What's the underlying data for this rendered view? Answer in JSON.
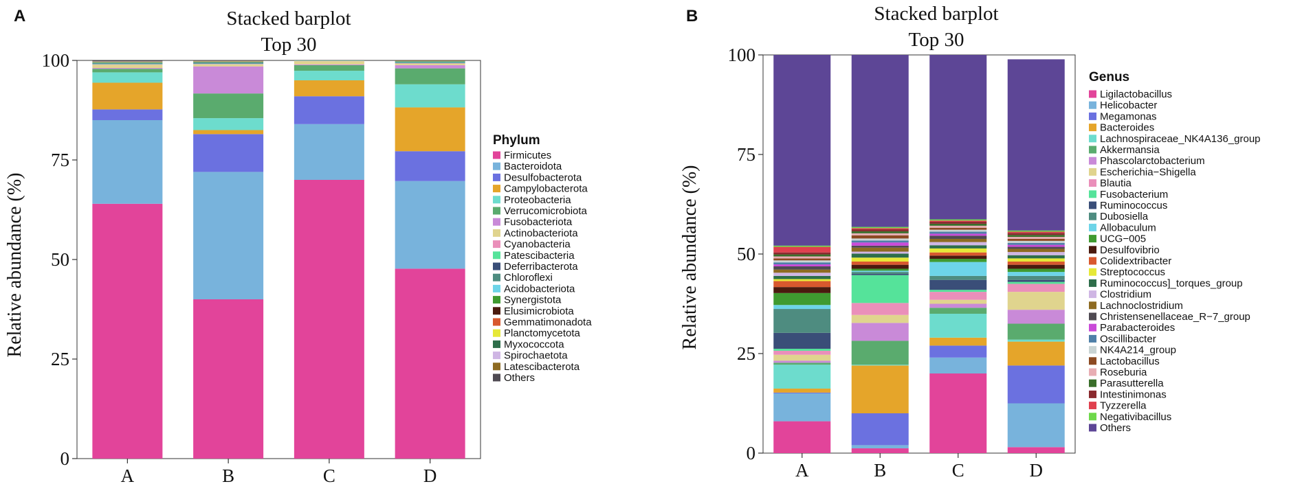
{
  "chart_data": [
    {
      "panel": "A",
      "type": "bar",
      "stacked": true,
      "title": "Stacked barplot",
      "subtitle": "Top 30",
      "ylabel": "Relative abundance (%)",
      "xlabel": "",
      "ylim": [
        0,
        100
      ],
      "yticks": [
        0,
        25,
        50,
        75,
        100
      ],
      "categories": [
        "A",
        "B",
        "C",
        "D"
      ],
      "legend_title": "Phylum",
      "legend_position": "right",
      "series": [
        {
          "name": "Firmicutes",
          "color": "#e2449a",
          "values": [
            64.0,
            40.0,
            70.0,
            47.7
          ]
        },
        {
          "name": "Bacteroidota",
          "color": "#78b3dc",
          "values": [
            21.0,
            32.0,
            14.0,
            22.0
          ]
        },
        {
          "name": "Desulfobacterota",
          "color": "#6b71e0",
          "values": [
            2.7,
            9.5,
            7.0,
            7.5
          ]
        },
        {
          "name": "Campylobacterota",
          "color": "#e5a52a",
          "values": [
            6.7,
            1.0,
            4.0,
            11.0
          ]
        },
        {
          "name": "Proteobacteria",
          "color": "#6ddccd",
          "values": [
            2.6,
            3.0,
            2.4,
            5.8
          ]
        },
        {
          "name": "Verrucomicrobiota",
          "color": "#5aab6e",
          "values": [
            0.9,
            6.2,
            1.4,
            4.0
          ]
        },
        {
          "name": "Fusobacteriota",
          "color": "#c98ad8",
          "values": [
            0.2,
            6.8,
            0.2,
            0.8
          ]
        },
        {
          "name": "Actinobacteriota",
          "color": "#e0d48e",
          "values": [
            0.8,
            0.5,
            0.8,
            0.4
          ]
        },
        {
          "name": "Cyanobacteria",
          "color": "#ea8fba",
          "values": [
            0.1,
            0.1,
            0.1,
            0.1
          ]
        },
        {
          "name": "Patescibacteria",
          "color": "#55e39a",
          "values": [
            0.1,
            0.1,
            0.1,
            0.1
          ]
        },
        {
          "name": "Deferribacterota",
          "color": "#3a4e78",
          "values": [
            0.1,
            0.1,
            0.1,
            0.1
          ]
        },
        {
          "name": "Chloroflexi",
          "color": "#4e8c80",
          "values": [
            0.1,
            0.1,
            0.1,
            0.1
          ]
        },
        {
          "name": "Acidobacteriota",
          "color": "#6dd4e8",
          "values": [
            0.1,
            0.1,
            0.1,
            0.1
          ]
        },
        {
          "name": "Synergistota",
          "color": "#3f9a30",
          "values": [
            0.1,
            0.1,
            0.1,
            0.1
          ]
        },
        {
          "name": "Elusimicrobiota",
          "color": "#4a1a0e",
          "values": [
            0.05,
            0.05,
            0.05,
            0.05
          ]
        },
        {
          "name": "Gemmatimonadota",
          "color": "#d8582e",
          "values": [
            0.05,
            0.05,
            0.05,
            0.05
          ]
        },
        {
          "name": "Planctomycetota",
          "color": "#e6e838",
          "values": [
            0.05,
            0.05,
            0.05,
            0.05
          ]
        },
        {
          "name": "Myxococcota",
          "color": "#2e6e4a",
          "values": [
            0.05,
            0.05,
            0.05,
            0.05
          ]
        },
        {
          "name": "Spirochaetota",
          "color": "#cfb6e4",
          "values": [
            0.05,
            0.05,
            0.05,
            0.05
          ]
        },
        {
          "name": "Latescibacterota",
          "color": "#8e6b22",
          "values": [
            0.05,
            0.05,
            0.05,
            0.05
          ]
        },
        {
          "name": "Others",
          "color": "#4f4a52",
          "values": [
            0.2,
            0.35,
            0.3,
            0.3
          ]
        }
      ]
    },
    {
      "panel": "B",
      "type": "bar",
      "stacked": true,
      "title": "Stacked barplot",
      "subtitle": "Top 30",
      "ylabel": "Relative abundance (%)",
      "xlabel": "",
      "ylim": [
        0,
        100
      ],
      "yticks": [
        0,
        25,
        50,
        75,
        100
      ],
      "categories": [
        "A",
        "B",
        "C",
        "D"
      ],
      "legend_title": "Genus",
      "legend_position": "right",
      "series": [
        {
          "name": "Ligilactobacillus",
          "color": "#e2449a",
          "values": [
            8.0,
            1.2,
            20.0,
            1.5
          ]
        },
        {
          "name": "Helicobacter",
          "color": "#78b3dc",
          "values": [
            7.0,
            0.8,
            4.0,
            11.0
          ]
        },
        {
          "name": "Megamonas",
          "color": "#6b71e0",
          "values": [
            0.2,
            8.0,
            3.0,
            9.5
          ]
        },
        {
          "name": "Bacteroides",
          "color": "#e5a52a",
          "values": [
            1.0,
            12.0,
            2.0,
            6.0
          ]
        },
        {
          "name": "Lachnospiraceae_NK4A136_group",
          "color": "#6ddccd",
          "values": [
            6.0,
            0.2,
            6.0,
            0.5
          ]
        },
        {
          "name": "Akkermansia",
          "color": "#5aab6e",
          "values": [
            0.5,
            6.0,
            1.5,
            4.0
          ]
        },
        {
          "name": "Phascolarctobacterium",
          "color": "#c98ad8",
          "values": [
            0.5,
            4.5,
            1.0,
            3.5
          ]
        },
        {
          "name": "Escherichia−Shigella",
          "color": "#e0d48e",
          "values": [
            1.5,
            2.0,
            1.0,
            4.5
          ]
        },
        {
          "name": "Blautia",
          "color": "#ea8fba",
          "values": [
            1.0,
            3.0,
            2.0,
            2.0
          ]
        },
        {
          "name": "Fusobacterium",
          "color": "#55e39a",
          "values": [
            0.5,
            7.0,
            0.5,
            0.5
          ]
        },
        {
          "name": "Ruminococcus",
          "color": "#3a4e78",
          "values": [
            4.0,
            0.3,
            2.5,
            0.5
          ]
        },
        {
          "name": "Dubosiella",
          "color": "#4e8c80",
          "values": [
            6.0,
            0.5,
            1.0,
            1.0
          ]
        },
        {
          "name": "Allobaculum",
          "color": "#6dd4e8",
          "values": [
            1.0,
            0.3,
            3.5,
            1.0
          ]
        },
        {
          "name": "UCG−005",
          "color": "#3f9a30",
          "values": [
            3.0,
            0.5,
            0.8,
            0.8
          ]
        },
        {
          "name": "Desulfovibrio",
          "color": "#4a1a0e",
          "values": [
            1.5,
            1.0,
            0.8,
            1.0
          ]
        },
        {
          "name": "Colidextribacter",
          "color": "#d8582e",
          "values": [
            1.5,
            0.8,
            0.8,
            0.8
          ]
        },
        {
          "name": "Streptococcus",
          "color": "#e6e838",
          "values": [
            0.5,
            1.0,
            1.0,
            0.8
          ]
        },
        {
          "name": "Ruminococcus]_torques_group",
          "color": "#2e6e4a",
          "values": [
            0.8,
            1.0,
            0.8,
            0.8
          ]
        },
        {
          "name": "Clostridium",
          "color": "#cfb6e4",
          "values": [
            0.8,
            0.5,
            0.8,
            0.8
          ]
        },
        {
          "name": "Lachnoclostridium",
          "color": "#8e6b22",
          "values": [
            0.8,
            1.0,
            0.8,
            0.8
          ]
        },
        {
          "name": "Christensenellaceae_R−7_group",
          "color": "#4f4a52",
          "values": [
            0.8,
            0.5,
            0.8,
            0.5
          ]
        },
        {
          "name": "Parabacteroides",
          "color": "#c94ad8",
          "values": [
            0.5,
            0.8,
            0.5,
            0.5
          ]
        },
        {
          "name": "Oscillibacter",
          "color": "#4e7fa8",
          "values": [
            0.5,
            0.5,
            0.5,
            0.5
          ]
        },
        {
          "name": "NK4A214_group",
          "color": "#c9d4d4",
          "values": [
            0.5,
            0.5,
            0.5,
            0.5
          ]
        },
        {
          "name": "Lactobacillus",
          "color": "#8c4a22",
          "values": [
            0.5,
            0.8,
            0.5,
            0.5
          ]
        },
        {
          "name": "Roseburia",
          "color": "#e8aeb4",
          "values": [
            0.5,
            0.5,
            0.5,
            0.5
          ]
        },
        {
          "name": "Parasutterella",
          "color": "#3a6e2a",
          "values": [
            0.5,
            0.5,
            0.5,
            0.5
          ]
        },
        {
          "name": "Intestinimonas",
          "color": "#8a2a2e",
          "values": [
            0.5,
            0.5,
            0.5,
            0.5
          ]
        },
        {
          "name": "Tyzzerella",
          "color": "#e0404e",
          "values": [
            1.4,
            0.3,
            0.3,
            0.3
          ]
        },
        {
          "name": "Negativibacillus",
          "color": "#6ed84a",
          "values": [
            0.3,
            0.3,
            0.3,
            0.3
          ]
        },
        {
          "name": "Others",
          "color": "#5d4696",
          "values": [
            48.0,
            44.0,
            43.0,
            43.0
          ]
        }
      ]
    }
  ],
  "panels": [
    {
      "letter": "A"
    },
    {
      "letter": "B"
    }
  ]
}
